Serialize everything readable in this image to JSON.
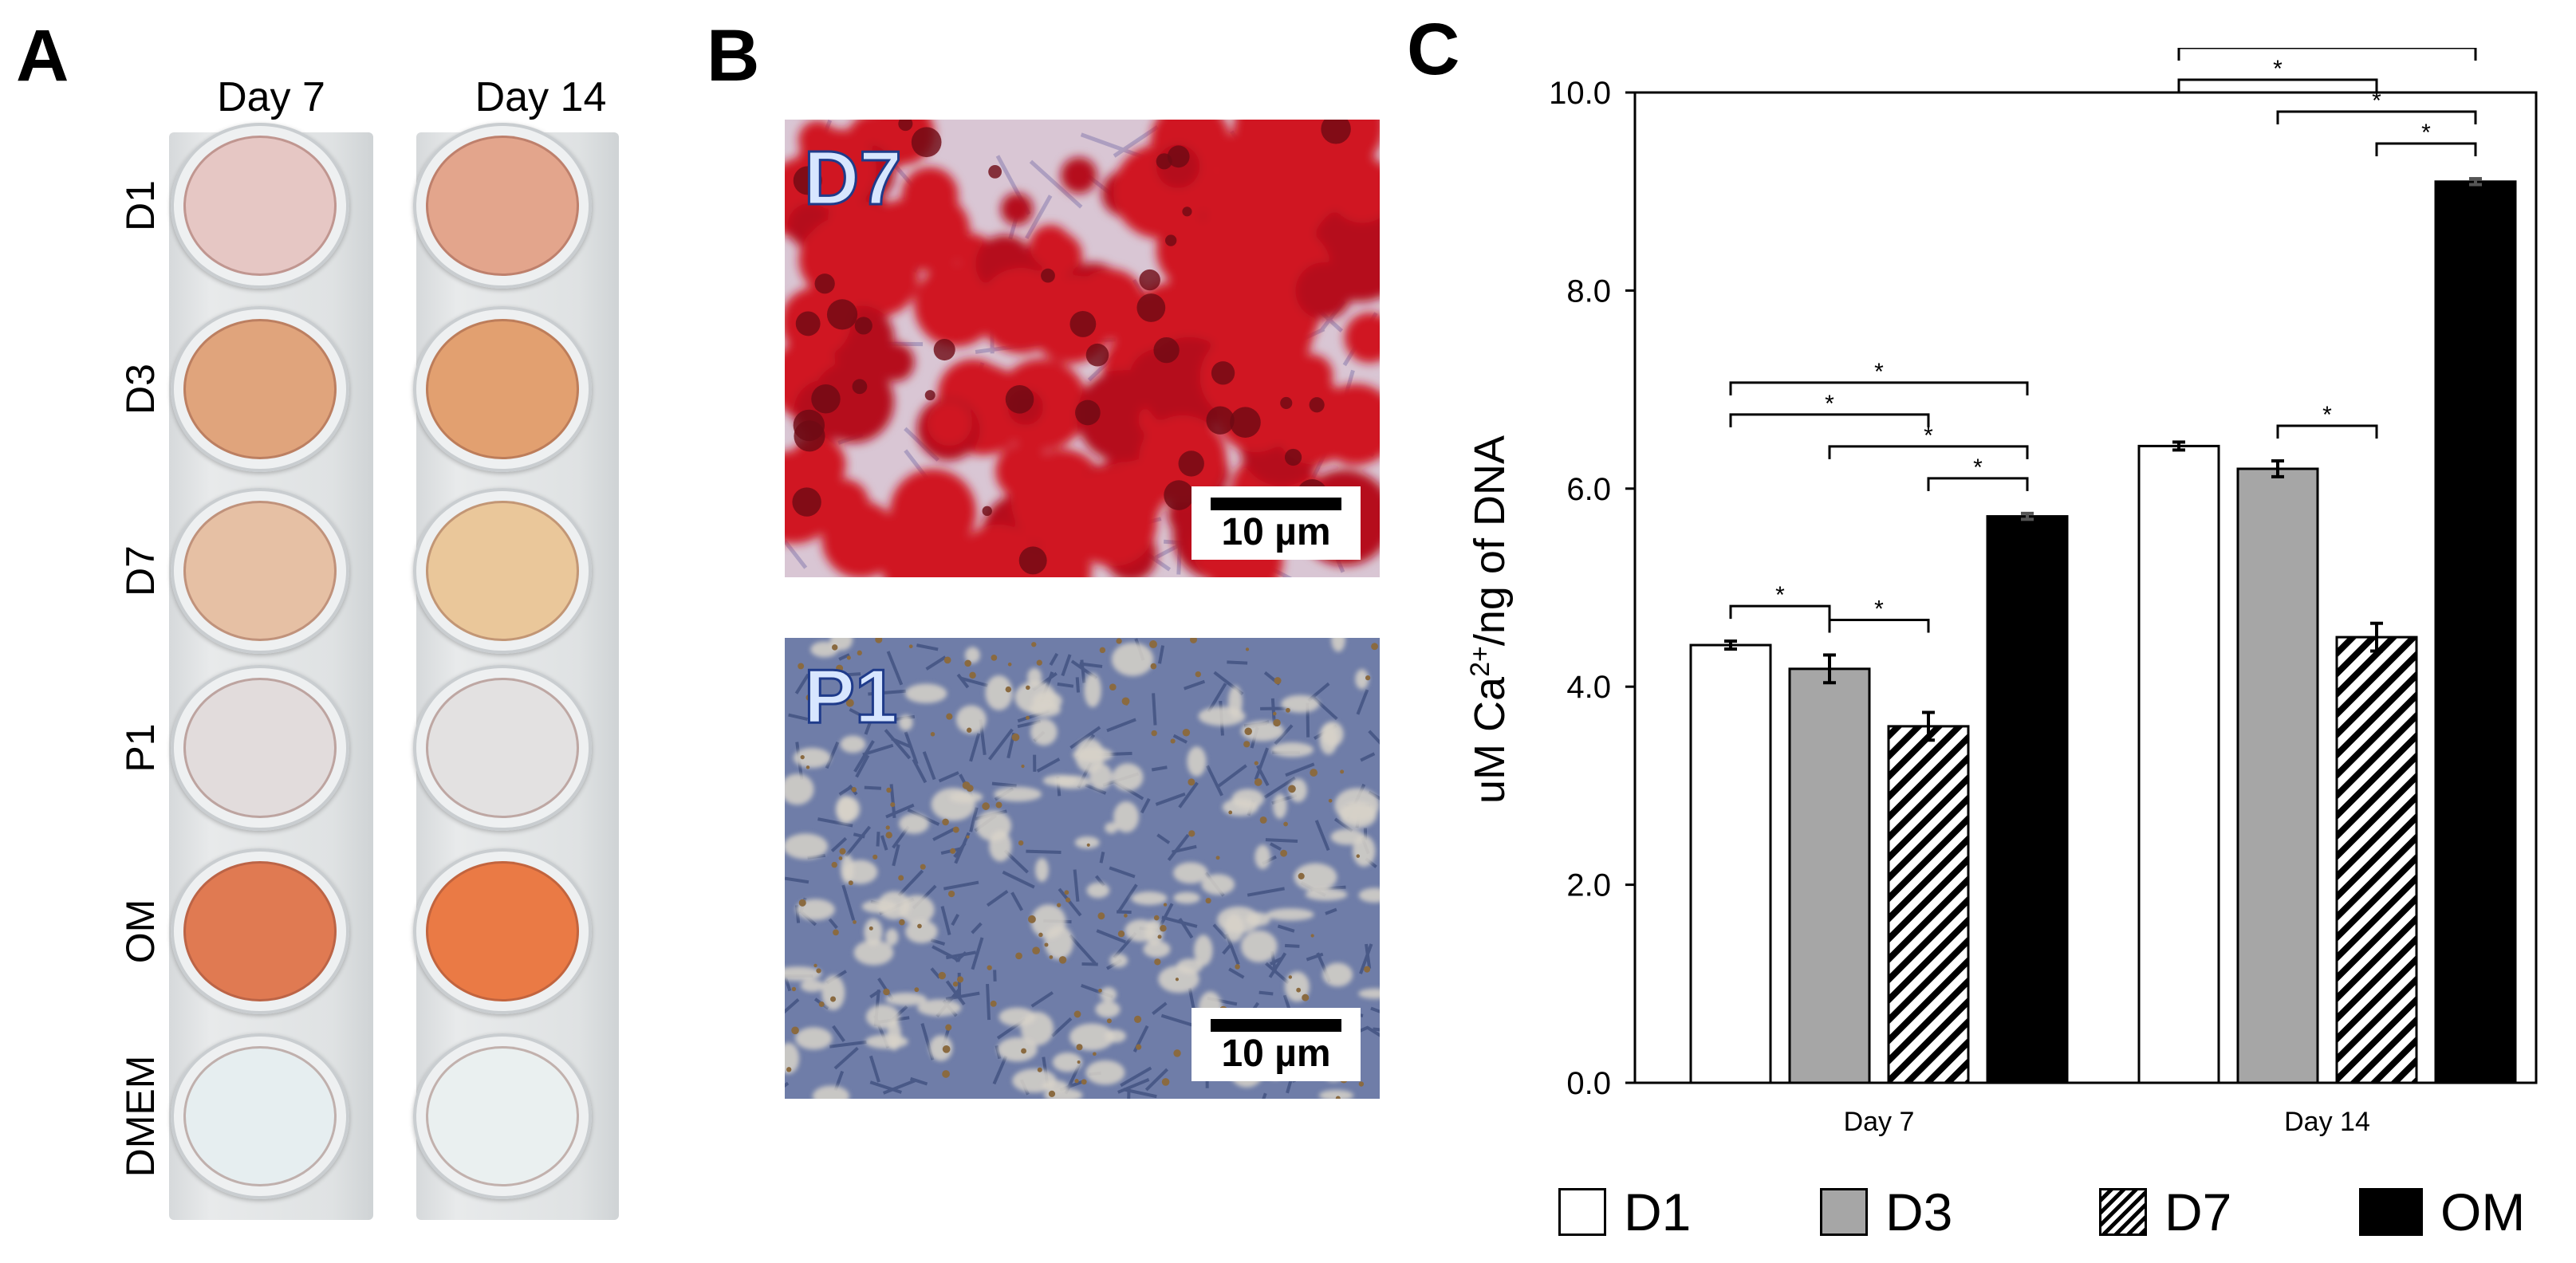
{
  "panels": {
    "a": "A",
    "b": "B",
    "c": "C"
  },
  "panel_a": {
    "columns": [
      "Day 7",
      "Day 14"
    ],
    "rows": [
      "D1",
      "D3",
      "D7",
      "P1",
      "OM",
      "DMEM"
    ]
  },
  "panel_b": {
    "images": [
      {
        "label": "D7",
        "scale": "10 µm"
      },
      {
        "label": "P1",
        "scale": "10 µm"
      }
    ]
  },
  "colors": {
    "d1": "#ffffff",
    "d3": "#a6a6a6",
    "om": "#000000",
    "stain_red": "#d01424",
    "stain_blue": "#6f7da8"
  },
  "chart_data": {
    "type": "bar",
    "categories": [
      "Day 7",
      "Day 14"
    ],
    "ylabel": "uM Ca2+/ng of DNA",
    "ylim": [
      0,
      10
    ],
    "yticks": [
      "0.0",
      "2.0",
      "4.0",
      "6.0",
      "8.0",
      "10.0"
    ],
    "series": [
      {
        "name": "D1",
        "values": [
          4.42,
          6.43
        ],
        "errors": [
          0.04,
          0.04
        ],
        "fill": "white"
      },
      {
        "name": "D3",
        "values": [
          4.18,
          6.2
        ],
        "errors": [
          0.14,
          0.08
        ],
        "fill": "gray"
      },
      {
        "name": "D7",
        "values": [
          3.6,
          4.5
        ],
        "errors": [
          0.14,
          0.14
        ],
        "fill": "hatched"
      },
      {
        "name": "OM",
        "values": [
          5.72,
          9.1
        ],
        "errors": [
          0.03,
          0.03
        ],
        "fill": "black"
      }
    ],
    "significance_marker": "*",
    "significance": [
      {
        "group": "Day 7",
        "from": "D1",
        "to": "D3"
      },
      {
        "group": "Day 7",
        "from": "D3",
        "to": "D7"
      },
      {
        "group": "Day 7",
        "from": "D1",
        "to": "D7"
      },
      {
        "group": "Day 7",
        "from": "D7",
        "to": "OM"
      },
      {
        "group": "Day 7",
        "from": "D3",
        "to": "OM"
      },
      {
        "group": "Day 7",
        "from": "D1",
        "to": "OM"
      },
      {
        "group": "Day 14",
        "from": "D3",
        "to": "D7"
      },
      {
        "group": "Day 14",
        "from": "D1",
        "to": "D7"
      },
      {
        "group": "Day 14",
        "from": "D7",
        "to": "OM"
      },
      {
        "group": "Day 14",
        "from": "D3",
        "to": "OM"
      },
      {
        "group": "Day 14",
        "from": "D1",
        "to": "OM"
      }
    ],
    "legend": [
      "D1",
      "D3",
      "D7",
      "OM"
    ],
    "legend_position": "bottom"
  }
}
